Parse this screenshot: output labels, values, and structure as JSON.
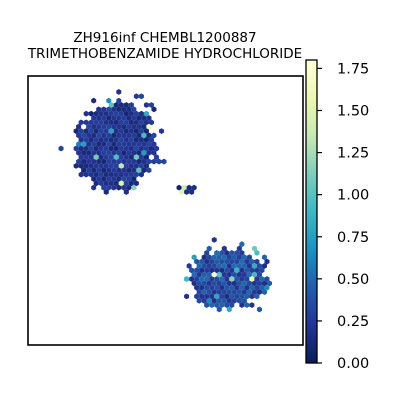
{
  "chart_data": {
    "type": "heatmap",
    "subtype": "hexbin-embedding",
    "title": "ZH916inf CHEMBL1200887",
    "subtitle": "TRIMETHOBENZAMIDE HYDROCHLORIDE",
    "xlabel": "",
    "ylabel": "",
    "axis_ticks": false,
    "grid": false,
    "colormap": "YlGnBu_r",
    "colorbar": {
      "position": "right",
      "range": [
        0,
        1.8
      ],
      "ticks": [
        0.0,
        0.25,
        0.5,
        0.75,
        1.0,
        1.25,
        1.5,
        1.75
      ],
      "tick_labels": [
        "0.00",
        "0.25",
        "0.50",
        "0.75",
        "1.00",
        "1.25",
        "1.50",
        "1.75"
      ],
      "colors": [
        "#081d58",
        "#253494",
        "#225ea8",
        "#1d91c0",
        "#41b6c4",
        "#7fcdbb",
        "#c7e9b4",
        "#edf8b1",
        "#ffffd9"
      ]
    },
    "clusters": [
      {
        "name": "",
        "center": [
          0.32,
          0.74
        ],
        "spread": [
          0.15,
          0.16
        ],
        "value_mean": 0.25
      },
      {
        "name": "",
        "center": [
          0.58,
          0.58
        ],
        "spread": [
          0.03,
          0.02
        ],
        "value_mean": 0.15
      },
      {
        "name": "",
        "center": [
          0.73,
          0.25
        ],
        "spread": [
          0.14,
          0.11
        ],
        "value_mean": 0.4
      }
    ]
  }
}
